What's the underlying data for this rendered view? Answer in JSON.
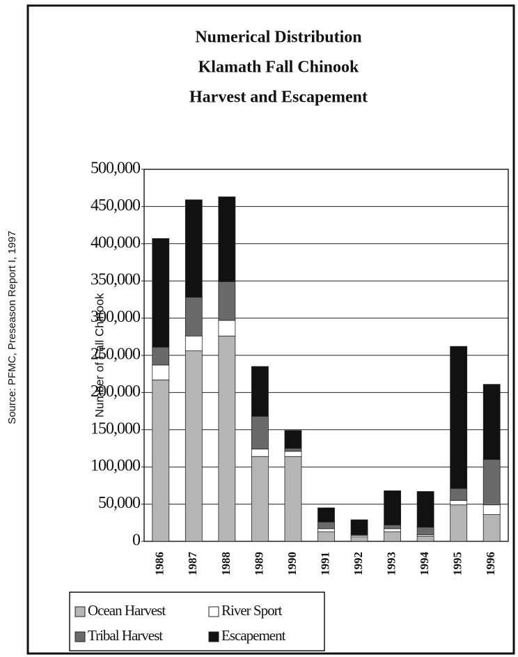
{
  "chart_data": {
    "type": "stacked_bar",
    "title_lines": [
      "Numerical Distribution",
      "Klamath Fall Chinook",
      "Harvest and Escapement"
    ],
    "source": "Source: PFMC, Preseason Report I, 1997",
    "y_label": "Number of Fall Chinook",
    "categories": [
      "1986",
      "1987",
      "1988",
      "1989",
      "1990",
      "1991",
      "1992",
      "1993",
      "1994",
      "1995",
      "1996"
    ],
    "series": [
      {
        "name": "Ocean Harvest",
        "color": "#b5b5b5",
        "values": [
          217000,
          256000,
          276000,
          114000,
          114000,
          13000,
          6000,
          13000,
          7000,
          49000,
          36000
        ]
      },
      {
        "name": "River Sport",
        "color": "#ffffff",
        "values": [
          20000,
          20000,
          21000,
          10000,
          7000,
          4000,
          2000,
          4000,
          2000,
          6000,
          13000
        ]
      },
      {
        "name": "Tribal Harvest",
        "color": "#6a6a6a",
        "values": [
          24000,
          52000,
          52000,
          44000,
          4000,
          9000,
          1000,
          5000,
          10000,
          16000,
          61000
        ]
      },
      {
        "name": "Escapement",
        "color": "#111111",
        "values": [
          146000,
          131000,
          114000,
          67000,
          24000,
          19000,
          20000,
          46000,
          48000,
          191000,
          101000
        ]
      }
    ],
    "ylim": [
      0,
      500000
    ],
    "yticks": [
      0,
      {
        "value": 50000,
        "label": "50,000"
      },
      {
        "value": 100000,
        "label": "100,000"
      },
      {
        "value": 150000,
        "label": "150,000"
      },
      {
        "value": 200000,
        "label": "200,000"
      },
      {
        "value": 250000,
        "label": "250,000"
      },
      {
        "value": 300000,
        "label": "300,000"
      },
      {
        "value": 350000,
        "label": "350,000"
      },
      {
        "value": 400000,
        "label": "400,000"
      },
      {
        "value": 450000,
        "label": "450,000"
      },
      {
        "value": 500000,
        "label": "500,000"
      }
    ],
    "grid": true
  }
}
